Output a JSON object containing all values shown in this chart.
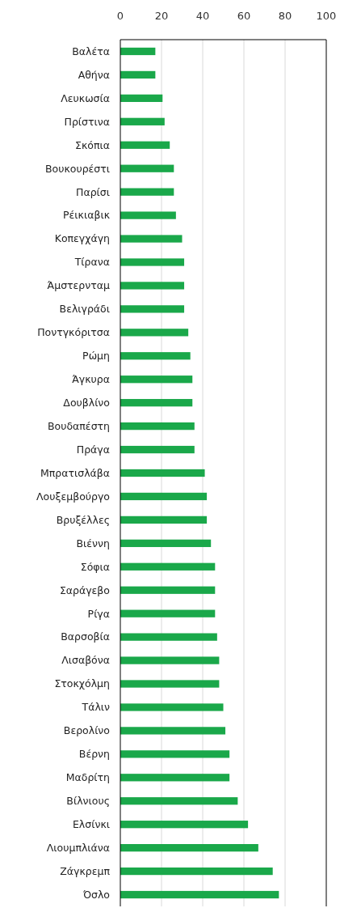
{
  "chart_data": {
    "type": "bar",
    "orientation": "horizontal",
    "categories": [
      "Βαλέτα",
      "Αθήνα",
      "Λευκωσία",
      "Πρίστινα",
      "Σκόπια",
      "Βουκουρέστι",
      "Παρίσι",
      "Ρέικιαβικ",
      "Κοπεγχάγη",
      "Τίρανα",
      "Άμστερνταμ",
      "Βελιγράδι",
      "Ποντγκόριτσα",
      "Ρώμη",
      "Άγκυρα",
      "Δουβλίνο",
      "Βουδαπέστη",
      "Πράγα",
      "Μπρατισλάβα",
      "Λουξεμβούργο",
      "Βρυξέλλες",
      "Βιέννη",
      "Σόφια",
      "Σαράγεβο",
      "Ρίγα",
      "Βαρσοβία",
      "Λισαβόνα",
      "Στοκχόλμη",
      "Τάλιν",
      "Βερολίνο",
      "Βέρνη",
      "Μαδρίτη",
      "Βίλνιους",
      "Ελσίνκι",
      "Λιουμπλιάνα",
      "Ζάγκρεμπ",
      "Όσλο"
    ],
    "values": [
      17,
      17,
      20.5,
      21.5,
      24,
      26,
      26,
      27,
      30,
      31,
      31,
      31,
      33,
      34,
      35,
      35,
      36,
      36,
      41,
      42,
      42,
      44,
      46,
      46,
      46,
      47,
      48,
      48,
      50,
      51,
      53,
      53,
      57,
      62,
      67,
      74,
      77
    ],
    "color": "#1aa84a",
    "xlim": [
      0,
      100
    ],
    "xticks": [
      0,
      20,
      40,
      60,
      80,
      100
    ],
    "grid": "x"
  }
}
